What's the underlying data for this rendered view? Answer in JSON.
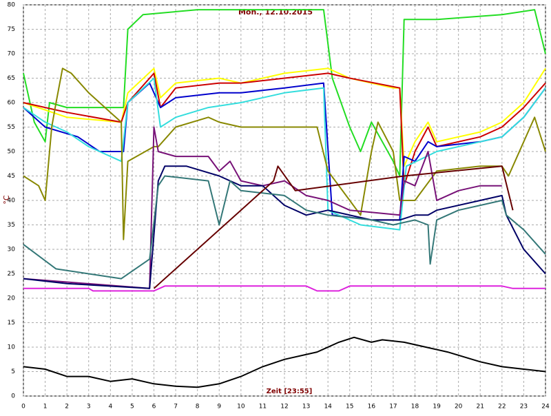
{
  "chart_data": {
    "type": "line",
    "title": "Mon., 12.10.2015",
    "x_label": "Zeit [23:55]",
    "y_label": "°C",
    "xlim": [
      0,
      24
    ],
    "ylim": [
      0,
      80
    ],
    "xticks": [
      0,
      1,
      2,
      3,
      4,
      5,
      6,
      7,
      8,
      9,
      10,
      11,
      12,
      13,
      14,
      15,
      16,
      17,
      18,
      19,
      20,
      21,
      22,
      23,
      24
    ],
    "yticks": [
      0,
      5,
      10,
      15,
      20,
      25,
      30,
      35,
      40,
      45,
      50,
      55,
      60,
      65,
      70,
      75,
      80
    ],
    "grid": true,
    "series": [
      {
        "color": "#22dd22",
        "x": [
          0,
          0.5,
          1,
          1.2,
          2,
          4.6,
          4.8,
          5.5,
          8,
          13.8,
          14.2,
          15,
          15.5,
          16,
          17,
          17.3,
          17.5,
          19,
          22,
          23.5,
          24
        ],
        "values": [
          66,
          56,
          52,
          60,
          59,
          59,
          75,
          78,
          79,
          79,
          65,
          55,
          50,
          56,
          48,
          45,
          77,
          77,
          78,
          79,
          70
        ]
      },
      {
        "color": "#ffff00",
        "x": [
          0,
          2,
          4.5,
          4.8,
          6,
          6.3,
          7,
          9,
          10,
          12,
          14,
          15,
          17,
          17.3,
          17.5,
          18,
          18.6,
          19,
          21,
          22,
          23,
          24
        ],
        "values": [
          60,
          57,
          56,
          62,
          67,
          61,
          64,
          65,
          64,
          66,
          67,
          65,
          63,
          63,
          47,
          52,
          56,
          52,
          54,
          56,
          60,
          67
        ]
      },
      {
        "color": "#cc0000",
        "x": [
          0,
          2,
          4.5,
          4.8,
          6,
          6.3,
          7,
          9,
          10,
          12,
          14,
          15,
          17.3,
          17.5,
          18,
          18.6,
          19,
          21,
          22,
          23,
          24
        ],
        "values": [
          60,
          58,
          56,
          60,
          66,
          59,
          63,
          64,
          64,
          65,
          66,
          65,
          63,
          43,
          50,
          55,
          51,
          53,
          55,
          59,
          64
        ]
      },
      {
        "color": "#0000cc",
        "x": [
          0,
          1,
          2.5,
          3.5,
          4.6,
          4.8,
          5.8,
          6.3,
          7,
          9,
          10,
          12,
          13.8,
          14.2,
          16,
          17.3,
          17.5,
          18,
          18.6,
          19,
          21,
          22,
          23,
          24
        ],
        "values": [
          59,
          55,
          53,
          50,
          50,
          60,
          64,
          59,
          61,
          62,
          62,
          63,
          64,
          37,
          36,
          36,
          49,
          48,
          52,
          51,
          52,
          53,
          57,
          63
        ]
      },
      {
        "color": "#33dddd",
        "x": [
          0,
          1,
          2,
          3,
          4.5,
          4.8,
          6,
          6.3,
          7,
          8.5,
          10,
          12,
          13.8,
          14,
          15.5,
          17.3,
          17.6,
          19,
          21,
          22,
          23,
          24
        ],
        "values": [
          59,
          56,
          54,
          51,
          48,
          60,
          65,
          55,
          57,
          59,
          60,
          62,
          63,
          38,
          35,
          34,
          47,
          50,
          52,
          53,
          57,
          63
        ]
      },
      {
        "color": "#888800",
        "x": [
          0,
          0.7,
          1,
          1.3,
          1.5,
          1.8,
          2.2,
          3,
          4,
          4.5,
          4.6,
          4.8,
          6,
          6.2,
          7,
          8.5,
          9,
          10,
          12,
          13.5,
          14,
          15,
          15.5,
          16,
          16.3,
          17,
          17.3,
          18,
          19,
          21,
          22,
          22.3,
          23,
          23.5,
          24
        ],
        "values": [
          45,
          43,
          40,
          55,
          60,
          67,
          66,
          62,
          58,
          56,
          32,
          48,
          51,
          51,
          55,
          57,
          56,
          55,
          55,
          55,
          46,
          40,
          37,
          50,
          56,
          50,
          40,
          40,
          46,
          47,
          47,
          45,
          52,
          57,
          50
        ]
      },
      {
        "color": "#771177",
        "x": [
          0,
          5.8,
          6,
          6.2,
          7,
          8.5,
          9,
          9.5,
          10,
          11,
          12,
          13,
          14,
          15,
          17.3,
          17.5,
          18,
          18.6,
          19,
          20,
          21,
          22
        ],
        "values": [
          24,
          22,
          55,
          50,
          49,
          49,
          46,
          48,
          44,
          43,
          44,
          41,
          40,
          38,
          37,
          44,
          43,
          50,
          40,
          42,
          43,
          43
        ]
      },
      {
        "color": "#000066",
        "x": [
          0,
          2,
          5.8,
          6.2,
          6.5,
          7.5,
          9,
          10,
          11,
          12,
          13,
          14,
          16,
          17.3,
          18,
          18.6,
          19,
          21,
          22,
          22.2,
          23,
          24
        ],
        "values": [
          24,
          23,
          22,
          44,
          47,
          47,
          45,
          43,
          43,
          39,
          37,
          38,
          36,
          36,
          37,
          37,
          38,
          40,
          41,
          37,
          30,
          25
        ]
      },
      {
        "color": "#337777",
        "x": [
          0,
          1.5,
          3,
          4.5,
          5.8,
          6.2,
          6.5,
          8.5,
          9,
          9.5,
          10,
          12,
          13,
          14,
          16,
          17,
          18,
          18.6,
          18.7,
          19,
          20,
          21,
          22,
          22.2,
          23,
          24
        ],
        "values": [
          31,
          26,
          25,
          24,
          28,
          43,
          45,
          44,
          35,
          44,
          42,
          41,
          38,
          37,
          36,
          35,
          36,
          35,
          27,
          36,
          38,
          39,
          40,
          37,
          34,
          29
        ]
      },
      {
        "color": "#660000",
        "x": [
          6,
          10,
          11.5,
          11.7,
          12.5,
          17.5,
          22,
          22.5
        ],
        "values": [
          22,
          38,
          44,
          47,
          42,
          45,
          47,
          38
        ]
      },
      {
        "color": "#dd22dd",
        "x": [
          0,
          3,
          3.2,
          6,
          6.5,
          13,
          13.5,
          14.5,
          15,
          22,
          22.5,
          24
        ],
        "values": [
          22,
          22,
          21.5,
          21.5,
          22.5,
          22.5,
          21.5,
          21.5,
          22.5,
          22.5,
          22,
          22
        ]
      },
      {
        "color": "#000000",
        "x": [
          0,
          1,
          2,
          3,
          4,
          5,
          6,
          7,
          8,
          9,
          10,
          11,
          12,
          13.5,
          14.5,
          15.2,
          16,
          16.5,
          17.5,
          18.5,
          19.5,
          21,
          22,
          23,
          24
        ],
        "values": [
          6,
          5.5,
          4,
          4,
          3,
          3.5,
          2.5,
          2,
          1.8,
          2.5,
          4,
          6,
          7.5,
          9,
          11,
          12,
          11,
          11.5,
          11,
          10,
          9,
          7,
          6,
          5.5,
          5
        ]
      }
    ]
  }
}
